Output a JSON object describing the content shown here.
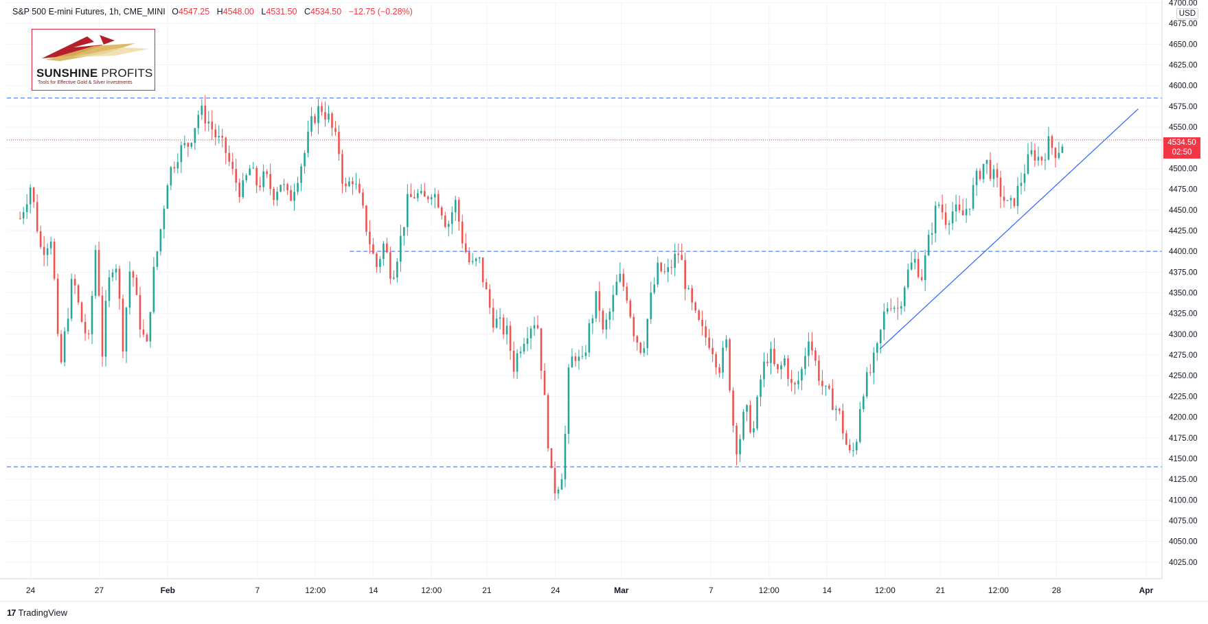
{
  "legend": {
    "symbol": "S&P 500 E-mini Futures, 1h, CME_MINI",
    "o_label": "O",
    "o_value": "4547.25",
    "h_label": "H",
    "h_value": "4548.00",
    "l_label": "L",
    "l_value": "4531.50",
    "c_label": "C",
    "c_value": "4534.50",
    "change": "−12.75 (−0.28%)"
  },
  "logo": {
    "name_bold": "SUNSHINE",
    "name_thin": "PROFITS",
    "tagline": "Tools for Effective Gold & Silver Investments"
  },
  "currency": "USD",
  "last_price": {
    "price": "4534.50",
    "countdown": "02:50"
  },
  "footer": {
    "brand": "TradingView",
    "icon": "17"
  },
  "colors": {
    "up": "#26a69a",
    "down": "#ef5350",
    "level_line": "#2962ff",
    "trend_line": "#2962ff",
    "last_price": "#f23645"
  },
  "chart_data": {
    "type": "candlestick",
    "title": "S&P 500 E-mini Futures, 1h, CME_MINI",
    "ylim": [
      4005,
      4700
    ],
    "yticks": [
      4025,
      4050,
      4075,
      4100,
      4125,
      4150,
      4175,
      4200,
      4225,
      4250,
      4275,
      4300,
      4325,
      4350,
      4375,
      4400,
      4425,
      4450,
      4475,
      4500,
      4525,
      4550,
      4575,
      4600,
      4625,
      4650,
      4675,
      4700
    ],
    "ytick_labels": [
      "4025.00",
      "4050.00",
      "4075.00",
      "4100.00",
      "4125.00",
      "4150.00",
      "4175.00",
      "4200.00",
      "4225.00",
      "4250.00",
      "4275.00",
      "4300.00",
      "4325.00",
      "4350.00",
      "4375.00",
      "4400.00",
      "4425.00",
      "4450.00",
      "4475.00",
      "4500.00",
      "4525.00",
      "4550.00",
      "4575.00",
      "4600.00",
      "4625.00",
      "4650.00",
      "4675.00",
      "4700.00"
    ],
    "x_ticks": [
      {
        "label": "24",
        "bold": false,
        "t": 0.4
      },
      {
        "label": "27",
        "bold": false,
        "t": 3.0
      },
      {
        "label": "Feb",
        "bold": true,
        "t": 5.6
      },
      {
        "label": "7",
        "bold": false,
        "t": 9.0
      },
      {
        "label": "12:00",
        "bold": false,
        "t": 11.2
      },
      {
        "label": "14",
        "bold": false,
        "t": 13.4
      },
      {
        "label": "12:00",
        "bold": false,
        "t": 15.6
      },
      {
        "label": "21",
        "bold": false,
        "t": 17.7
      },
      {
        "label": "24",
        "bold": false,
        "t": 20.3
      },
      {
        "label": "Mar",
        "bold": true,
        "t": 22.8
      },
      {
        "label": "7",
        "bold": false,
        "t": 26.2
      },
      {
        "label": "12:00",
        "bold": false,
        "t": 28.4
      },
      {
        "label": "14",
        "bold": false,
        "t": 30.6
      },
      {
        "label": "12:00",
        "bold": false,
        "t": 32.8
      },
      {
        "label": "21",
        "bold": false,
        "t": 34.9
      },
      {
        "label": "12:00",
        "bold": false,
        "t": 37.1
      },
      {
        "label": "28",
        "bold": false,
        "t": 39.3
      },
      {
        "label": "Apr",
        "bold": true,
        "t": 42.7
      }
    ],
    "xlim": [
      -0.5,
      43.3
    ],
    "levels": [
      4585,
      4400,
      4140
    ],
    "level_starts": [
      -0.5,
      12.5,
      -0.5
    ],
    "trend_line": {
      "from": [
        32.6,
        4282
      ],
      "to": [
        42.4,
        4572
      ]
    },
    "last_price": 4534.5,
    "grid": true,
    "series": [
      {
        "path": [
          [
            0.0,
            4440
          ],
          [
            0.4,
            4480
          ],
          [
            0.8,
            4400
          ],
          [
            1.2,
            4420
          ],
          [
            1.5,
            4250
          ],
          [
            1.7,
            4300
          ],
          [
            2.0,
            4370
          ],
          [
            2.3,
            4320
          ],
          [
            2.6,
            4290
          ],
          [
            2.9,
            4420
          ],
          [
            3.1,
            4270
          ],
          [
            3.3,
            4350
          ],
          [
            3.6,
            4400
          ],
          [
            3.9,
            4290
          ],
          [
            4.2,
            4390
          ],
          [
            4.5,
            4320
          ],
          [
            4.8,
            4280
          ],
          [
            5.0,
            4360
          ],
          [
            5.3,
            4420
          ],
          [
            5.6,
            4490
          ],
          [
            6.0,
            4520
          ],
          [
            6.4,
            4530
          ],
          [
            6.8,
            4570
          ],
          [
            7.1,
            4560
          ],
          [
            7.4,
            4540
          ],
          [
            7.8,
            4520
          ],
          [
            8.1,
            4490
          ],
          [
            8.4,
            4470
          ],
          [
            8.7,
            4500
          ],
          [
            9.0,
            4480
          ],
          [
            9.3,
            4490
          ],
          [
            9.6,
            4470
          ],
          [
            9.9,
            4485
          ],
          [
            10.2,
            4460
          ],
          [
            10.5,
            4490
          ],
          [
            10.8,
            4520
          ],
          [
            11.1,
            4560
          ],
          [
            11.4,
            4575
          ],
          [
            11.7,
            4560
          ],
          [
            11.9,
            4540
          ],
          [
            12.1,
            4520
          ],
          [
            12.3,
            4470
          ],
          [
            12.6,
            4490
          ],
          [
            12.9,
            4460
          ],
          [
            13.2,
            4420
          ],
          [
            13.5,
            4380
          ],
          [
            13.8,
            4410
          ],
          [
            14.1,
            4370
          ],
          [
            14.4,
            4410
          ],
          [
            14.7,
            4460
          ],
          [
            15.0,
            4470
          ],
          [
            15.3,
            4460
          ],
          [
            15.6,
            4475
          ],
          [
            15.9,
            4460
          ],
          [
            16.2,
            4430
          ],
          [
            16.5,
            4460
          ],
          [
            16.8,
            4410
          ],
          [
            17.1,
            4380
          ],
          [
            17.4,
            4390
          ],
          [
            17.6,
            4360
          ],
          [
            17.9,
            4320
          ],
          [
            18.2,
            4310
          ],
          [
            18.5,
            4300
          ],
          [
            18.7,
            4260
          ],
          [
            19.0,
            4290
          ],
          [
            19.3,
            4310
          ],
          [
            19.6,
            4320
          ],
          [
            19.8,
            4250
          ],
          [
            20.0,
            4180
          ],
          [
            20.2,
            4110
          ],
          [
            20.4,
            4120
          ],
          [
            20.6,
            4140
          ],
          [
            20.8,
            4250
          ],
          [
            21.0,
            4280
          ],
          [
            21.3,
            4260
          ],
          [
            21.6,
            4310
          ],
          [
            21.9,
            4350
          ],
          [
            22.1,
            4300
          ],
          [
            22.4,
            4330
          ],
          [
            22.7,
            4370
          ],
          [
            23.0,
            4350
          ],
          [
            23.3,
            4300
          ],
          [
            23.6,
            4280
          ],
          [
            23.9,
            4340
          ],
          [
            24.2,
            4380
          ],
          [
            24.5,
            4370
          ],
          [
            24.8,
            4390
          ],
          [
            25.0,
            4400
          ],
          [
            25.3,
            4350
          ],
          [
            25.6,
            4320
          ],
          [
            25.9,
            4300
          ],
          [
            26.2,
            4290
          ],
          [
            26.5,
            4260
          ],
          [
            26.8,
            4290
          ],
          [
            27.0,
            4200
          ],
          [
            27.2,
            4160
          ],
          [
            27.5,
            4210
          ],
          [
            27.8,
            4180
          ],
          [
            28.1,
            4250
          ],
          [
            28.4,
            4280
          ],
          [
            28.7,
            4250
          ],
          [
            29.0,
            4270
          ],
          [
            29.3,
            4230
          ],
          [
            29.6,
            4250
          ],
          [
            29.9,
            4300
          ],
          [
            30.2,
            4260
          ],
          [
            30.5,
            4230
          ],
          [
            30.8,
            4220
          ],
          [
            31.1,
            4200
          ],
          [
            31.3,
            4170
          ],
          [
            31.5,
            4150
          ],
          [
            31.7,
            4170
          ],
          [
            31.9,
            4230
          ],
          [
            32.2,
            4250
          ],
          [
            32.5,
            4280
          ],
          [
            32.8,
            4330
          ],
          [
            33.0,
            4340
          ],
          [
            33.3,
            4330
          ],
          [
            33.6,
            4370
          ],
          [
            33.9,
            4390
          ],
          [
            34.2,
            4370
          ],
          [
            34.5,
            4420
          ],
          [
            34.8,
            4460
          ],
          [
            35.1,
            4440
          ],
          [
            35.4,
            4450
          ],
          [
            35.7,
            4440
          ],
          [
            36.0,
            4460
          ],
          [
            36.3,
            4490
          ],
          [
            36.6,
            4510
          ],
          [
            36.9,
            4490
          ],
          [
            37.2,
            4470
          ],
          [
            37.5,
            4450
          ],
          [
            37.8,
            4470
          ],
          [
            38.1,
            4500
          ],
          [
            38.4,
            4520
          ],
          [
            38.7,
            4510
          ],
          [
            39.0,
            4530
          ],
          [
            39.3,
            4520
          ],
          [
            39.6,
            4535
          ]
        ]
      }
    ]
  }
}
